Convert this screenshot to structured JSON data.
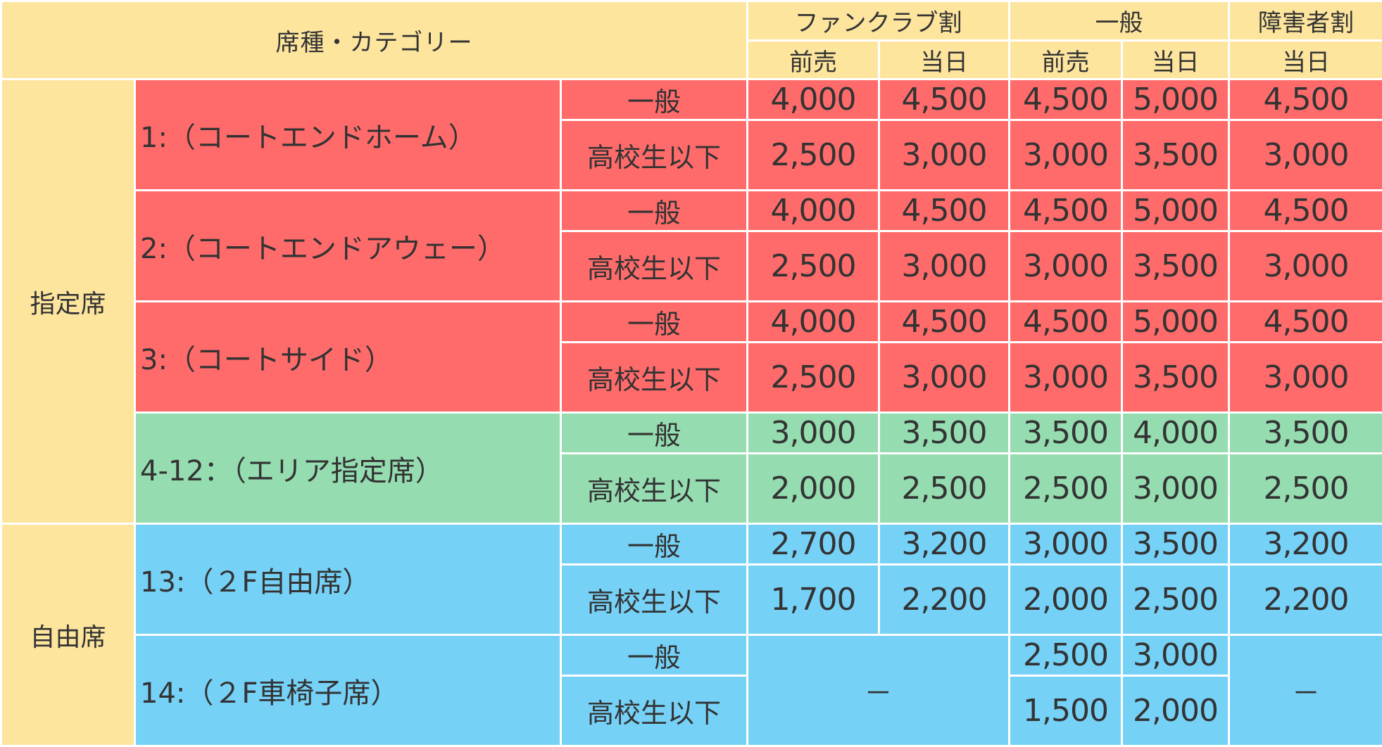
{
  "header": {
    "category": "席種・カテゴリー",
    "fanclub": "ファンクラブ割",
    "general": "一般",
    "disability": "障害者割",
    "presale": "前売",
    "sameday": "当日"
  },
  "groups": {
    "reserved": "指定席",
    "free": "自由席"
  },
  "sub_labels": {
    "adult": "一般",
    "student": "高校生以下"
  },
  "seats": [
    {
      "name": "1:（コートエンドホーム）",
      "color": "#ff6b6b",
      "adult": [
        "4,000",
        "4,500",
        "4,500",
        "5,000",
        "4,500"
      ],
      "student": [
        "2,500",
        "3,000",
        "3,000",
        "3,500",
        "3,000"
      ]
    },
    {
      "name": "2:（コートエンドアウェー）",
      "color": "#ff6b6b",
      "adult": [
        "4,000",
        "4,500",
        "4,500",
        "5,000",
        "4,500"
      ],
      "student": [
        "2,500",
        "3,000",
        "3,000",
        "3,500",
        "3,000"
      ]
    },
    {
      "name": "3:（コートサイド）",
      "color": "#ff6b6b",
      "adult": [
        "4,000",
        "4,500",
        "4,500",
        "5,000",
        "4,500"
      ],
      "student": [
        "2,500",
        "3,000",
        "3,000",
        "3,500",
        "3,000"
      ]
    },
    {
      "name": "4-12：（エリア指定席）",
      "color": "#95dcb1",
      "adult": [
        "3,000",
        "3,500",
        "3,500",
        "4,000",
        "3,500"
      ],
      "student": [
        "2,000",
        "2,500",
        "2,500",
        "3,000",
        "2,500"
      ]
    },
    {
      "name": "13:（２F自由席）",
      "color": "#76d1f7",
      "adult": [
        "2,700",
        "3,200",
        "3,000",
        "3,500",
        "3,200"
      ],
      "student": [
        "1,700",
        "2,200",
        "2,000",
        "2,500",
        "2,200"
      ]
    },
    {
      "name": "14:（２F車椅子席）",
      "color": "#76d1f7",
      "fanclub_na": "－",
      "disability_na": "－",
      "adult_general": [
        "2,500",
        "3,000"
      ],
      "student_general": [
        "1,500",
        "2,000"
      ]
    }
  ],
  "colors": {
    "header_bg": "#fde59e",
    "court_seats": "#ff6b6b",
    "area_seats": "#95dcb1",
    "free_seats": "#76d1f7",
    "grid_lines": "#ffffff"
  }
}
